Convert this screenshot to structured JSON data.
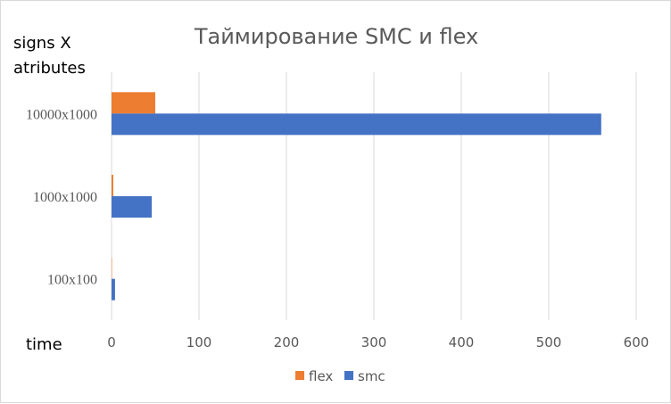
{
  "chart_data": {
    "type": "bar",
    "orientation": "horizontal",
    "title": "Таймирование SMC и flex",
    "ylabel": "signs X atributes",
    "xlabel": "time",
    "categories": [
      "10000x1000",
      "1000x1000",
      "100x100"
    ],
    "series": [
      {
        "name": "flex",
        "color": "#ED7D31",
        "values": [
          50,
          2,
          0.5
        ]
      },
      {
        "name": "smc",
        "color": "#4472C4",
        "values": [
          560,
          46,
          4
        ]
      }
    ],
    "xlim": [
      0,
      600
    ],
    "xticks": [
      0,
      100,
      200,
      300,
      400,
      500,
      600
    ],
    "grid": "vertical",
    "legend_position": "bottom",
    "legend_order": [
      "flex",
      "smc"
    ]
  }
}
